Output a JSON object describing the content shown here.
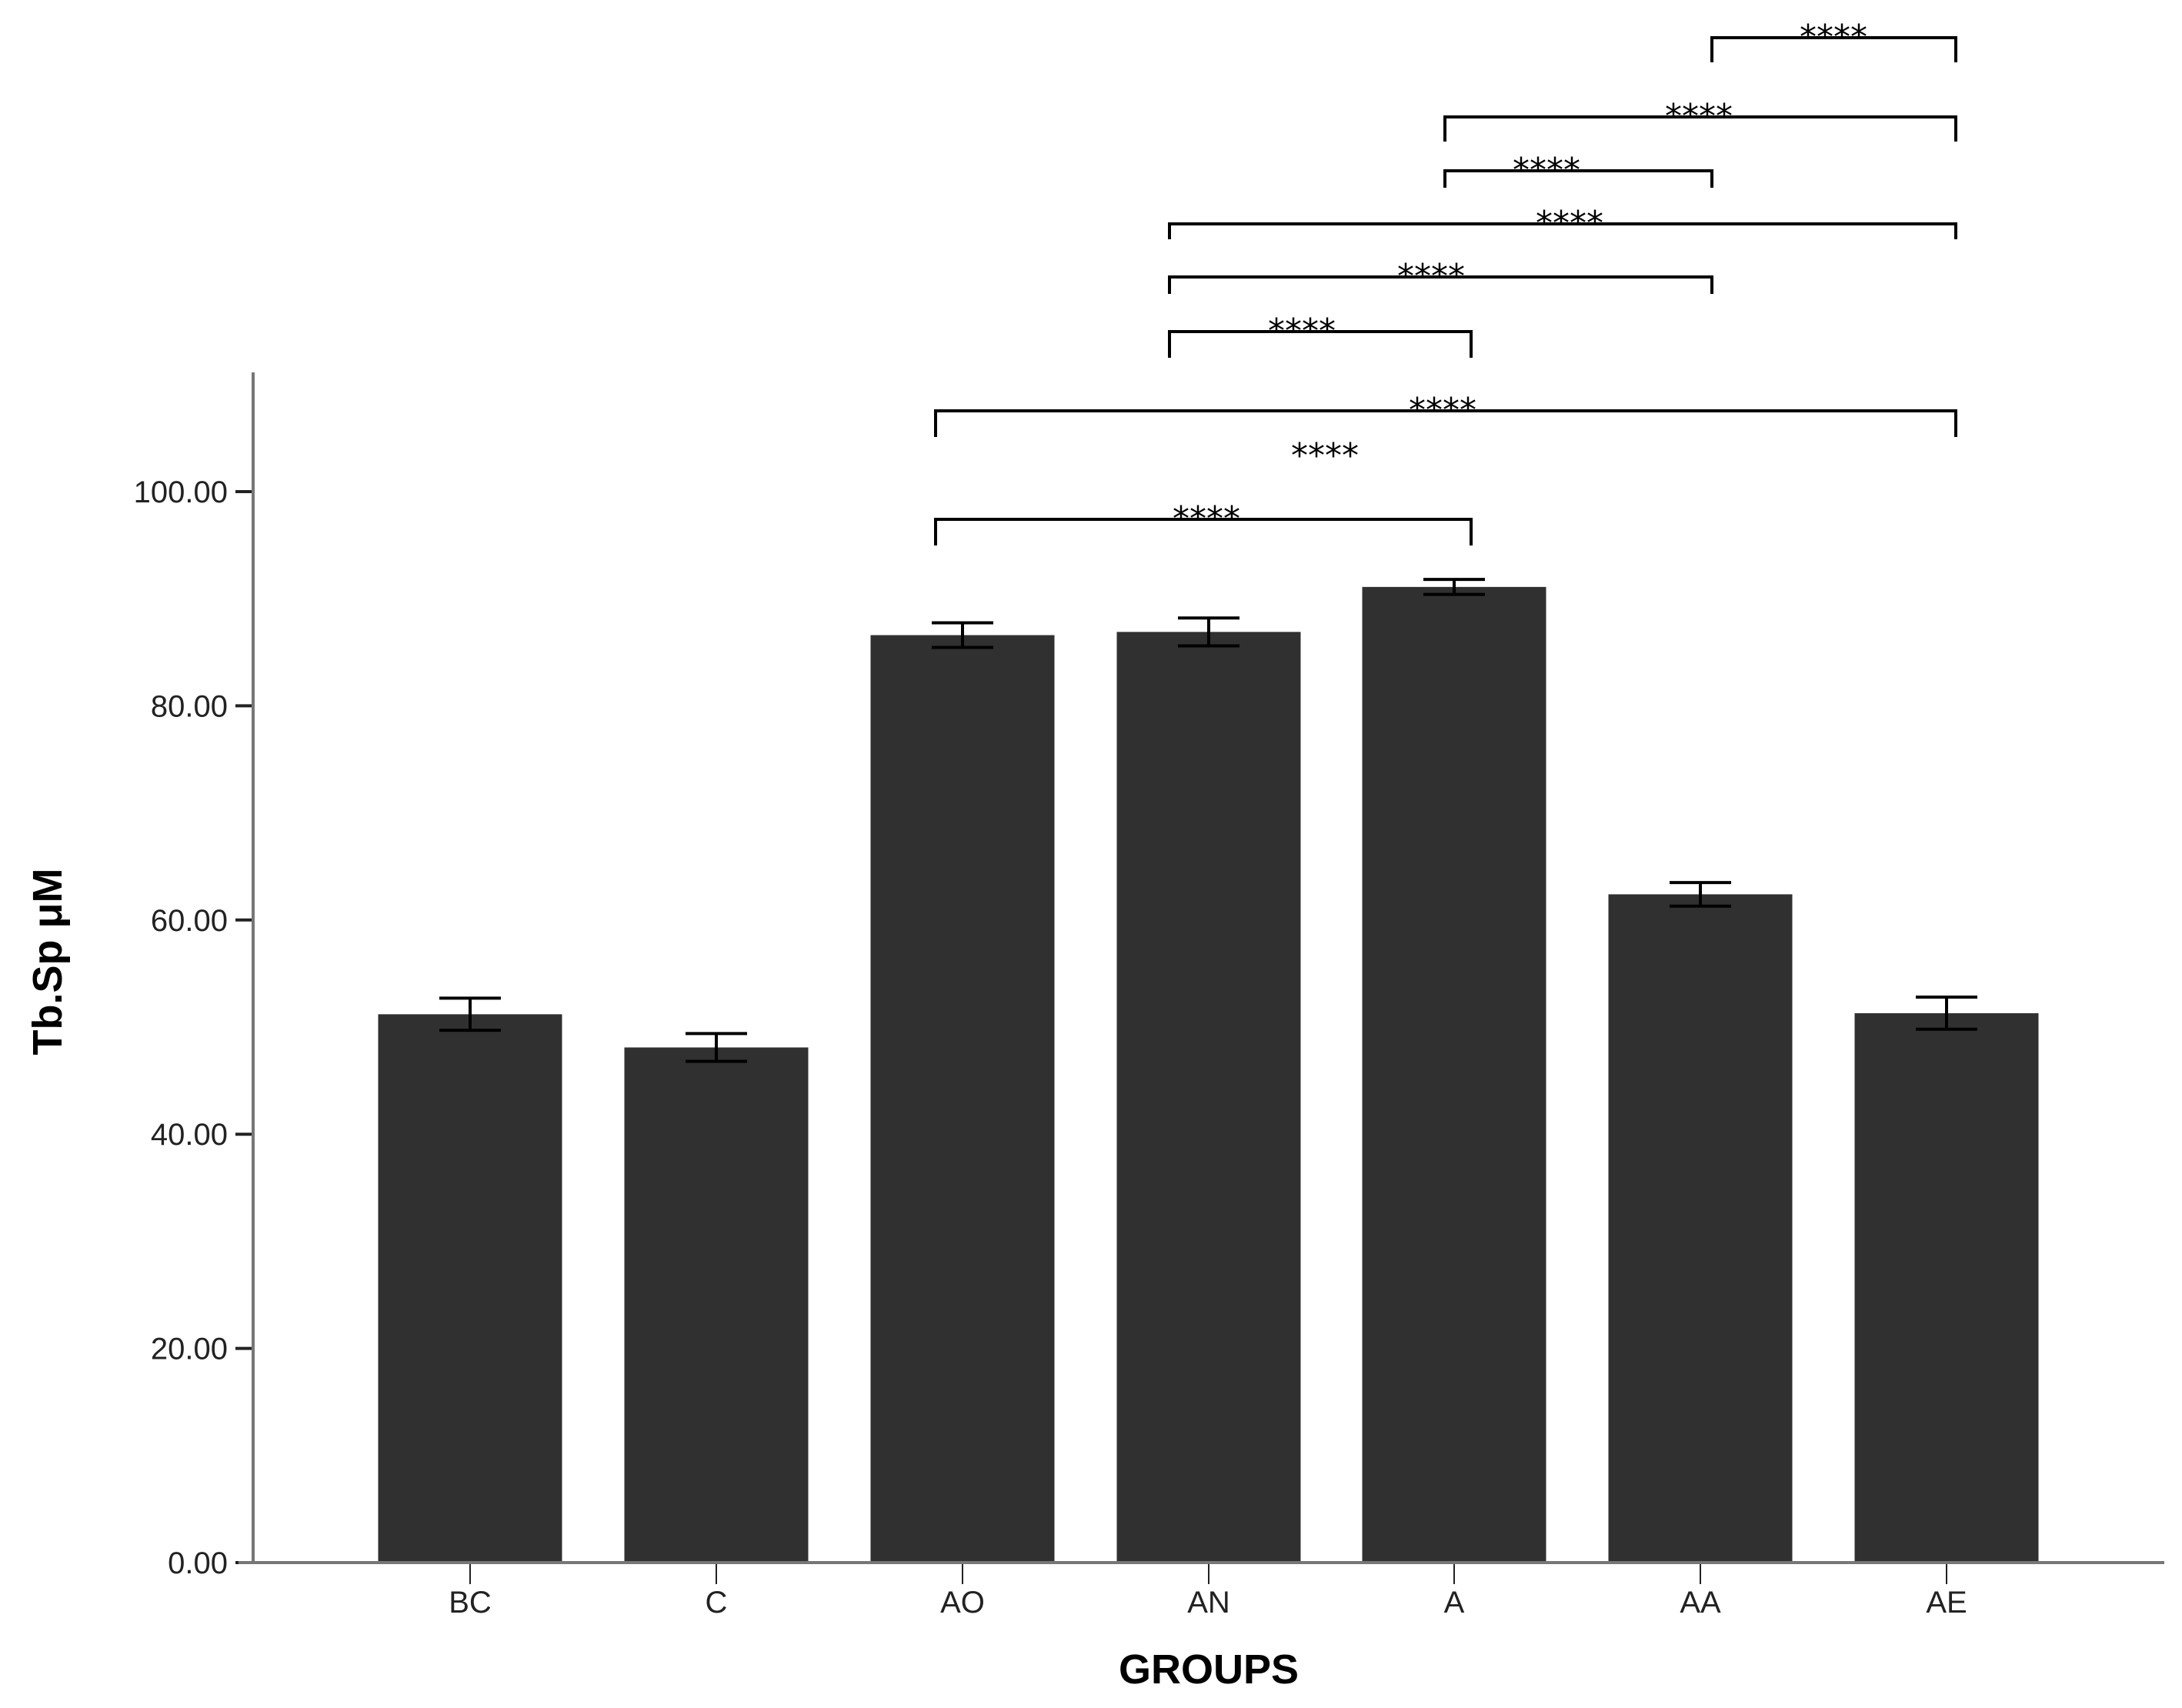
{
  "chart_data": {
    "type": "bar",
    "title": "",
    "xlabel": "GROUPS",
    "ylabel": "Tb.Sp μM",
    "categories": [
      "BC",
      "C",
      "AO",
      "AN",
      "A",
      "AA",
      "AE"
    ],
    "values": [
      51.2,
      48.1,
      86.6,
      86.9,
      91.1,
      62.4,
      51.3
    ],
    "error": [
      1.5,
      1.3,
      1.15,
      1.3,
      0.7,
      1.1,
      1.5
    ],
    "ylim": [
      0,
      111
    ],
    "yticks": [
      0,
      20,
      40,
      60,
      80,
      100
    ],
    "ytick_labels": [
      "0.00",
      "20.00",
      "40.00",
      "60.00",
      "80.00",
      "100.00"
    ],
    "grid": false,
    "legend": null,
    "bar_color": "#303030",
    "significance": [
      {
        "from": "AA",
        "to": "AE",
        "label": "****"
      },
      {
        "from": "A",
        "to": "AE",
        "label": "****"
      },
      {
        "from": "A",
        "to": "AA",
        "label": "****"
      },
      {
        "from": "AN",
        "to": "AE",
        "label": "****"
      },
      {
        "from": "AN",
        "to": "AA",
        "label": "****"
      },
      {
        "from": "AN",
        "to": "A",
        "label": "****"
      },
      {
        "from": "AO",
        "to": "AE",
        "label": "****"
      },
      {
        "from": null,
        "to": null,
        "label": "****"
      },
      {
        "from": "AO",
        "to": "A",
        "label": "****"
      }
    ]
  }
}
